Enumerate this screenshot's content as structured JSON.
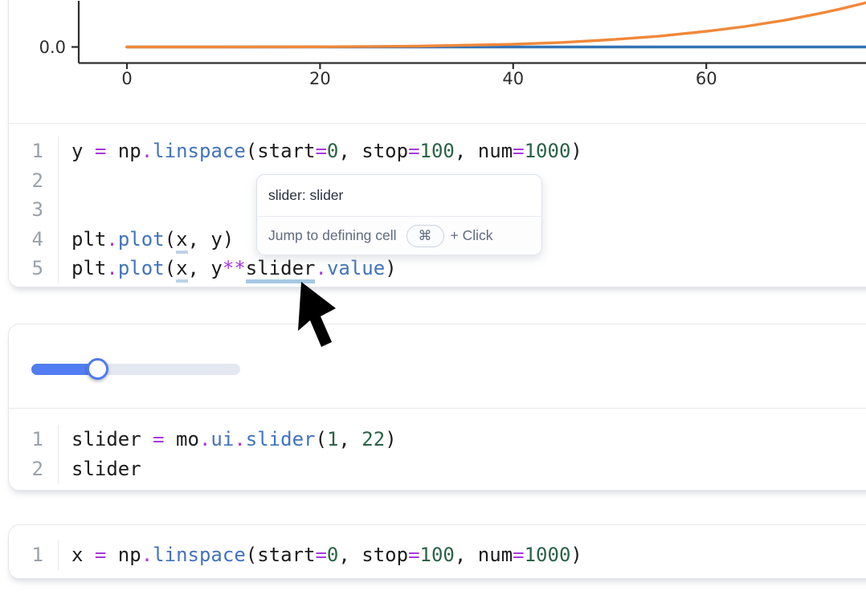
{
  "app": {
    "kind": "marimo-notebook"
  },
  "colors": {
    "accent_blue": "#527df2",
    "syntax_plain": "#1c1c1e",
    "syntax_operator": "#a836e0",
    "syntax_function": "#4273bd",
    "syntax_number": "#2a6347",
    "reactive_underline": "#a6c8e3",
    "series_blue": "#3473b6",
    "series_orange": "#f0883a",
    "axis": "#2d2d2d"
  },
  "chart_data": {
    "type": "line",
    "title": "",
    "xlabel": "",
    "ylabel": "",
    "x_ticks": [
      0,
      20,
      40,
      60
    ],
    "y_tick_labels": [
      "0.0"
    ],
    "x_visible_range": [
      -5,
      76.6
    ],
    "grid": false,
    "legend": "none",
    "note": "figure cropped at top and right; y values normalized: 0 = the 0.0 baseline, 1 = top of visible crop",
    "series": [
      {
        "name": "plt.plot(x, y)",
        "color": "#3473b6",
        "points": [
          [
            0,
            0
          ],
          [
            76.6,
            0
          ]
        ]
      },
      {
        "name": "plt.plot(x, y**slider.value)",
        "color": "#f0883a",
        "points": [
          [
            0,
            0
          ],
          [
            10,
            0.0002
          ],
          [
            20,
            0.003
          ],
          [
            30,
            0.017
          ],
          [
            40,
            0.059
          ],
          [
            45,
            0.098
          ],
          [
            50,
            0.156
          ],
          [
            55,
            0.232
          ],
          [
            60,
            0.339
          ],
          [
            64,
            0.444
          ],
          [
            68,
            0.576
          ],
          [
            70,
            0.655
          ],
          [
            72,
            0.737
          ],
          [
            74,
            0.829
          ],
          [
            76,
            0.93
          ],
          [
            77.3,
            1.0
          ]
        ]
      }
    ]
  },
  "slider": {
    "percent": 31.6,
    "min_from_code": 1,
    "max_from_code": 22
  },
  "tooltip": {
    "title": "slider: slider",
    "action": "Jump to defining cell",
    "key": "⌘",
    "suffix": "+ Click"
  },
  "code_cells": [
    {
      "lines": [
        {
          "n": "1",
          "tokens": [
            [
              "v",
              "y "
            ],
            [
              "o",
              "="
            ],
            [
              "v",
              " np"
            ],
            [
              "o",
              "."
            ],
            [
              "f",
              "linspace"
            ],
            [
              "v",
              "(start"
            ],
            [
              "o",
              "="
            ],
            [
              "n",
              "0"
            ],
            [
              "v",
              ", stop"
            ],
            [
              "o",
              "="
            ],
            [
              "n",
              "100"
            ],
            [
              "v",
              ", num"
            ],
            [
              "o",
              "="
            ],
            [
              "n",
              "1000"
            ],
            [
              "v",
              ")"
            ]
          ]
        },
        {
          "n": "2",
          "tokens": []
        },
        {
          "n": "3",
          "tokens": []
        },
        {
          "n": "4",
          "tokens": [
            [
              "v",
              "plt"
            ],
            [
              "o",
              "."
            ],
            [
              "f",
              "plot"
            ],
            [
              "v",
              "("
            ],
            [
              "u",
              "x"
            ],
            [
              "v",
              ", y)"
            ]
          ]
        },
        {
          "n": "5",
          "tokens": [
            [
              "v",
              "plt"
            ],
            [
              "o",
              "."
            ],
            [
              "f",
              "plot"
            ],
            [
              "v",
              "("
            ],
            [
              "u",
              "x"
            ],
            [
              "v",
              ", y"
            ],
            [
              "o",
              "**"
            ],
            [
              "uh",
              "slider"
            ],
            [
              "o",
              "."
            ],
            [
              "f",
              "value"
            ],
            [
              "v",
              ")"
            ]
          ]
        }
      ]
    },
    {
      "lines": [
        {
          "n": "1",
          "tokens": [
            [
              "v",
              "slider "
            ],
            [
              "o",
              "="
            ],
            [
              "v",
              " mo"
            ],
            [
              "o",
              "."
            ],
            [
              "f",
              "ui"
            ],
            [
              "o",
              "."
            ],
            [
              "f",
              "slider"
            ],
            [
              "v",
              "("
            ],
            [
              "n",
              "1"
            ],
            [
              "v",
              ", "
            ],
            [
              "n",
              "22"
            ],
            [
              "v",
              ")"
            ]
          ]
        },
        {
          "n": "2",
          "tokens": [
            [
              "v",
              "slider"
            ]
          ]
        }
      ]
    },
    {
      "lines": [
        {
          "n": "1",
          "tokens": [
            [
              "v",
              "x "
            ],
            [
              "o",
              "="
            ],
            [
              "v",
              " np"
            ],
            [
              "o",
              "."
            ],
            [
              "f",
              "linspace"
            ],
            [
              "v",
              "(start"
            ],
            [
              "o",
              "="
            ],
            [
              "n",
              "0"
            ],
            [
              "v",
              ", stop"
            ],
            [
              "o",
              "="
            ],
            [
              "n",
              "100"
            ],
            [
              "v",
              ", num"
            ],
            [
              "o",
              "="
            ],
            [
              "n",
              "1000"
            ],
            [
              "v",
              ")"
            ]
          ]
        }
      ]
    }
  ]
}
